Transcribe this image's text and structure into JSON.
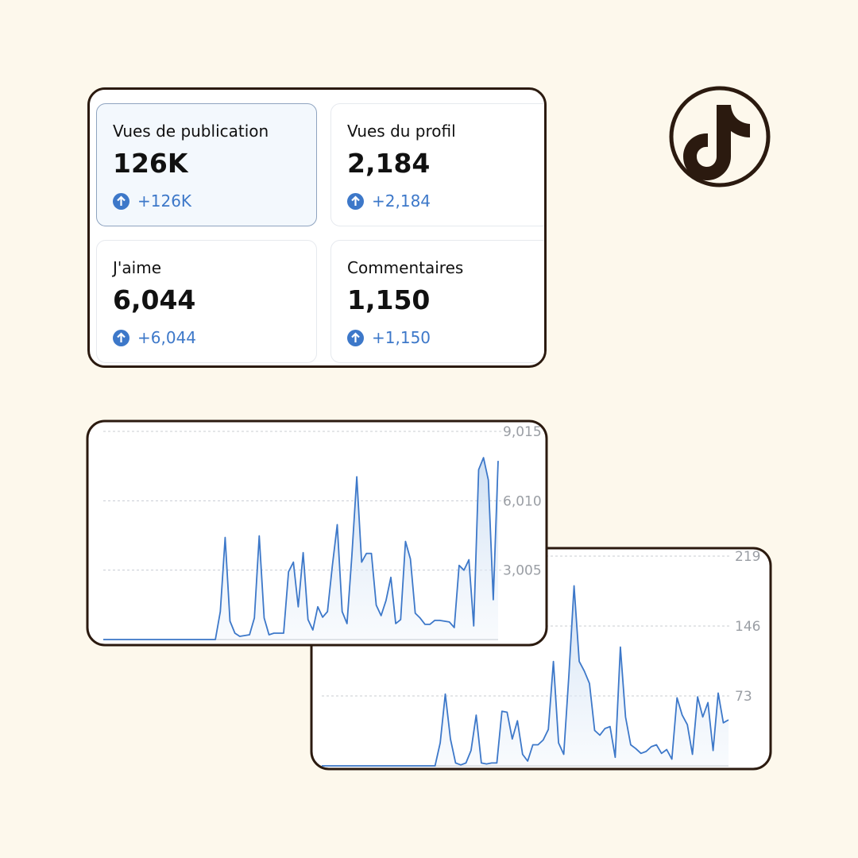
{
  "stats": [
    {
      "label": "Vues de publication",
      "value": "126K",
      "change": "+126K"
    },
    {
      "label": "Vues du profil",
      "value": "2,184",
      "change": "+2,184"
    },
    {
      "label": "J'aime",
      "value": "6,044",
      "change": "+6,044"
    },
    {
      "label": "Commentaires",
      "value": "1,150",
      "change": "+1,150"
    }
  ],
  "chart_data": [
    {
      "type": "line",
      "color": "#3d78c9",
      "ylim": [
        0,
        9015
      ],
      "yticks": [
        {
          "value": 3005,
          "label": "3,005"
        },
        {
          "value": 6010,
          "label": "6,010"
        },
        {
          "value": 9015,
          "label": "9,015"
        }
      ],
      "grid": true,
      "values": [
        0,
        0,
        0,
        0,
        0,
        0,
        0,
        0,
        0,
        0,
        0,
        0,
        0,
        0,
        0,
        0,
        0,
        0,
        0,
        0,
        0,
        0,
        0,
        0,
        1209,
        4421,
        794,
        276,
        138,
        173,
        207,
        933,
        4490,
        933,
        207,
        276,
        276,
        276,
        2936,
        3350,
        1416,
        3765,
        864,
        414,
        1416,
        967,
        1209,
        3212,
        4974,
        1209,
        691,
        3627,
        7046,
        3350,
        3730,
        3730,
        1485,
        1036,
        1692,
        2694,
        691,
        864,
        4248,
        3489,
        1140,
        933,
        656,
        656,
        829,
        829,
        794,
        760,
        518,
        3212,
        3005,
        3454,
        587,
        7357,
        7875,
        6908,
        1727,
        7737
      ]
    },
    {
      "type": "line",
      "color": "#3d78c9",
      "ylim": [
        0,
        219
      ],
      "yticks": [
        73,
        146,
        219
      ],
      "grid": true,
      "values": [
        0,
        0,
        0,
        0,
        0,
        0,
        0,
        0,
        0,
        0,
        0,
        0,
        0,
        0,
        0,
        0,
        0,
        0,
        0,
        0,
        0,
        0,
        0,
        24,
        75,
        28,
        3,
        1,
        3,
        16,
        53,
        3,
        2,
        3,
        3,
        57,
        56,
        28,
        47,
        12,
        5,
        22,
        22,
        27,
        38,
        109,
        24,
        12,
        95,
        188,
        109,
        99,
        86,
        37,
        32,
        39,
        41,
        9,
        124,
        51,
        22,
        18,
        13,
        15,
        20,
        22,
        13,
        17,
        7,
        71,
        53,
        43,
        12,
        72,
        51,
        66,
        16,
        76,
        45,
        48
      ]
    }
  ]
}
